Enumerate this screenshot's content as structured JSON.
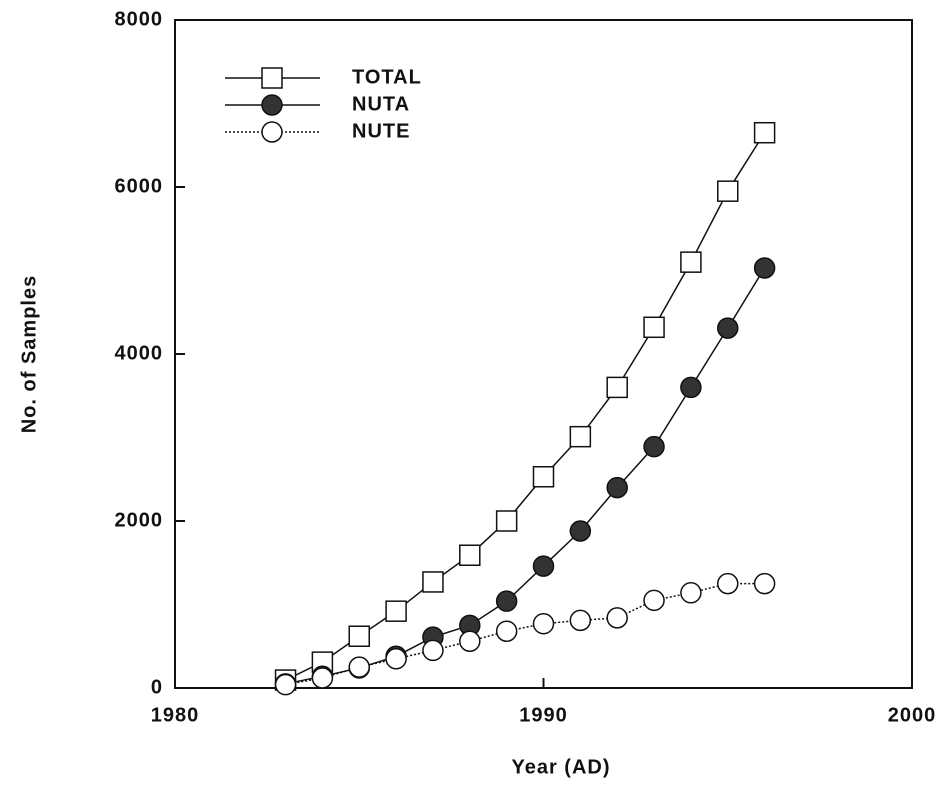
{
  "chart_data": {
    "type": "line",
    "xlabel": "Year (AD)",
    "ylabel": "No. of Samples",
    "x": [
      1983,
      1984,
      1985,
      1986,
      1987,
      1988,
      1989,
      1990,
      1991,
      1992,
      1993,
      1994,
      1995,
      1996
    ],
    "series": [
      {
        "name": "TOTAL",
        "color": "#111111",
        "marker": "open-square",
        "line": "solid",
        "values": [
          95,
          310,
          620,
          920,
          1270,
          1590,
          2000,
          2530,
          3010,
          3600,
          4320,
          5100,
          5950,
          6650
        ]
      },
      {
        "name": "NUTA",
        "color": "#111111",
        "marker": "filled-circle",
        "line": "solid",
        "values": [
          50,
          140,
          240,
          380,
          610,
          750,
          1040,
          1460,
          1880,
          2400,
          2890,
          3600,
          4310,
          5030
        ]
      },
      {
        "name": "NUTE",
        "color": "#111111",
        "marker": "open-circle",
        "line": "dotted",
        "values": [
          40,
          120,
          250,
          350,
          450,
          560,
          680,
          770,
          810,
          840,
          1050,
          1140,
          1250,
          1250
        ]
      }
    ],
    "xlim": [
      1980,
      2000
    ],
    "xticks": [
      1980,
      1990,
      2000
    ],
    "ylim": [
      0,
      8000
    ],
    "yticks": [
      0,
      2000,
      4000,
      6000,
      8000
    ],
    "legend": "upper-left"
  }
}
